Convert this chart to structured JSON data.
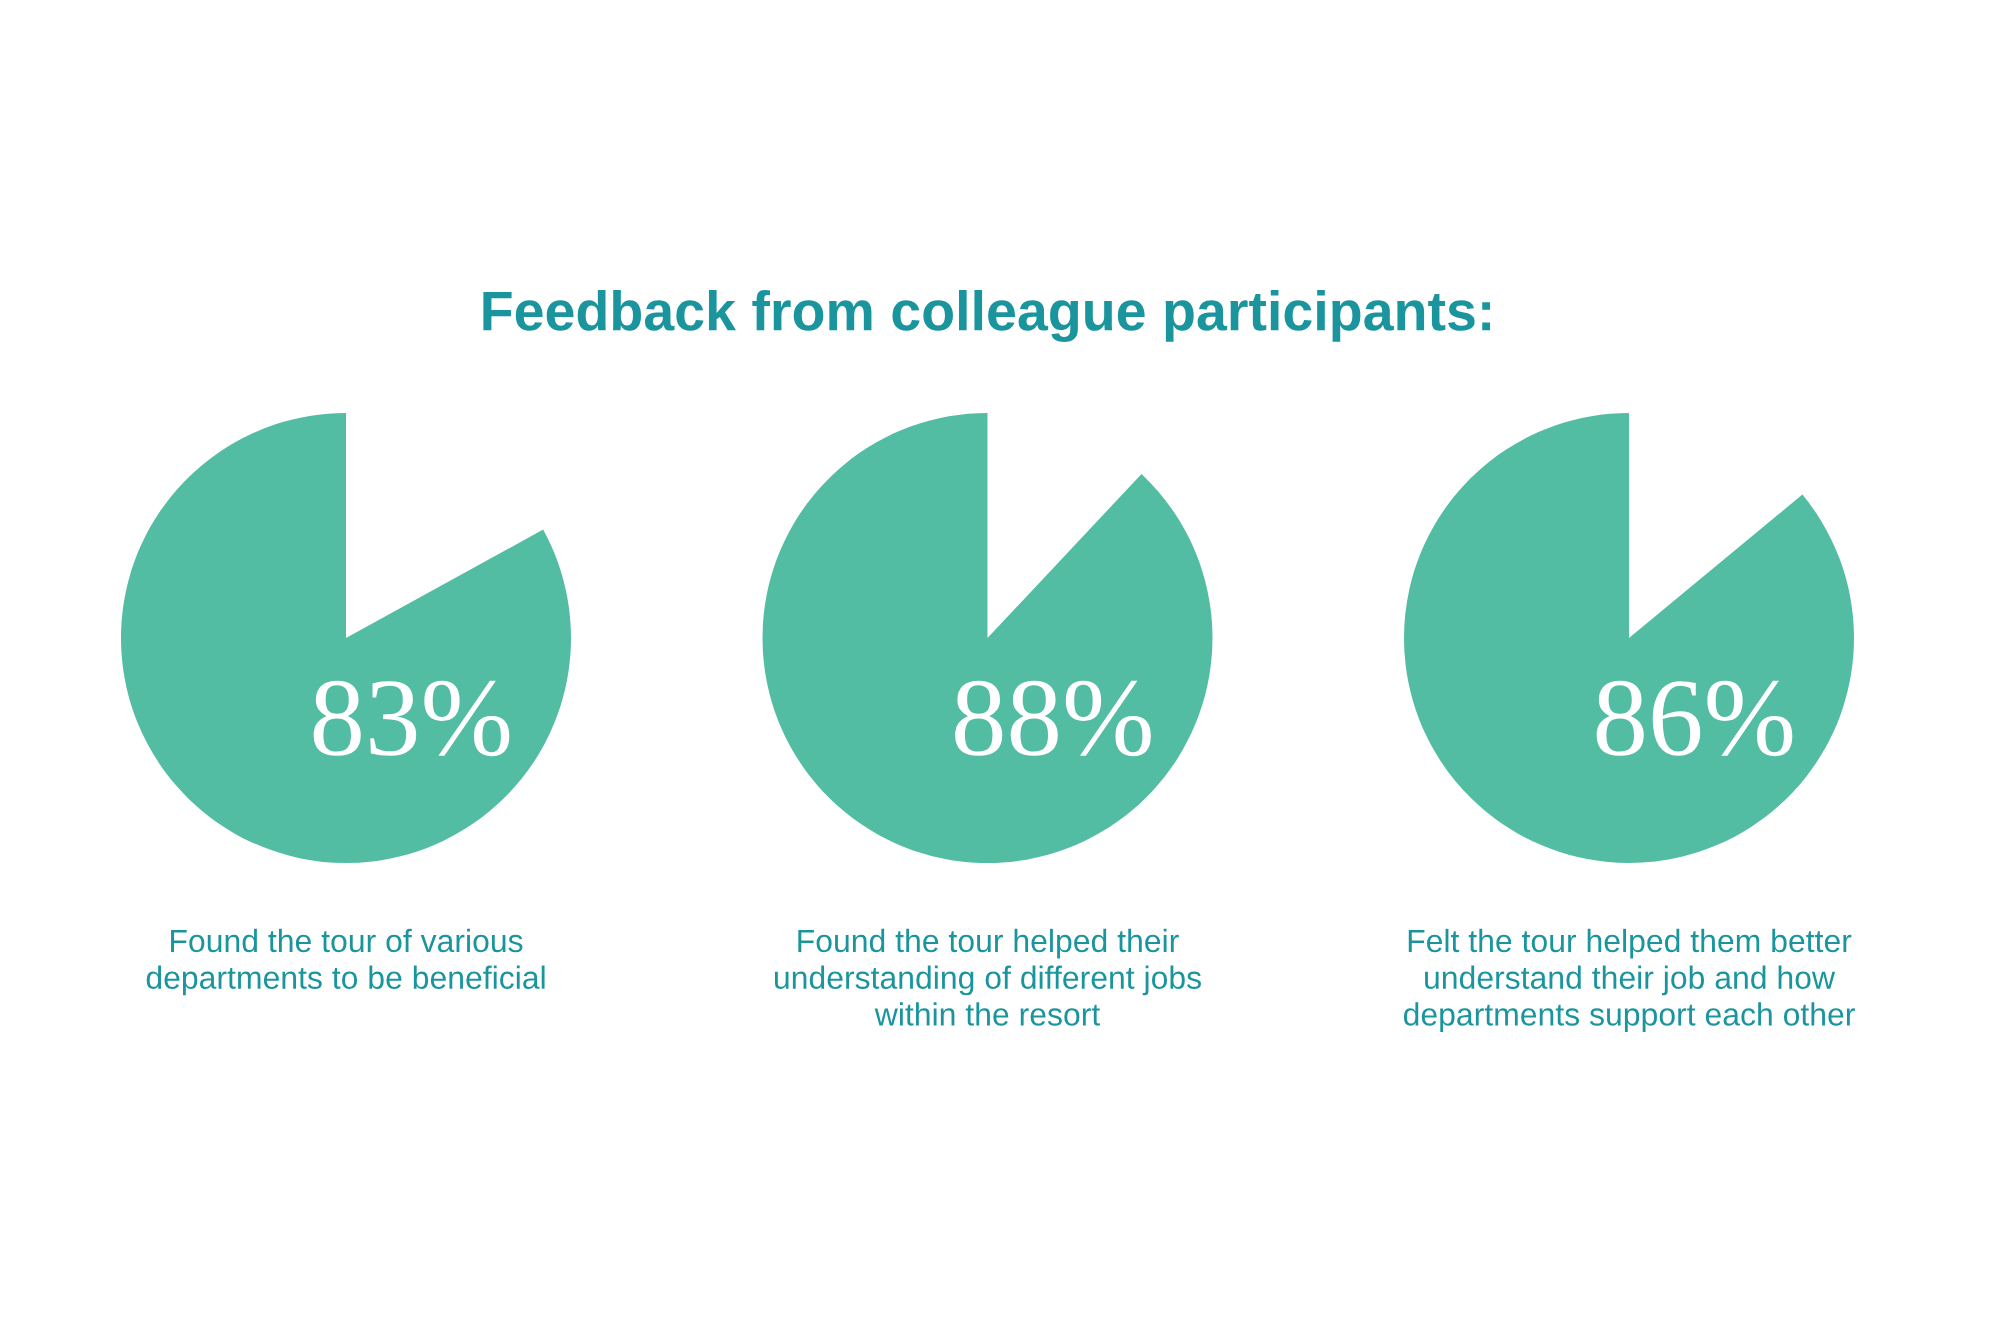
{
  "chart_data": [
    {
      "type": "pie",
      "categories": [
        "Found the tour of various\ndepartments to be beneficial"
      ],
      "values": [
        83
      ],
      "colors": [
        "#52bda3"
      ],
      "value_labels": [
        "83%"
      ]
    },
    {
      "type": "pie",
      "title": "Feedback from colleague participants:",
      "categories": [
        "Found the tour helped their\nunderstanding of different jobs\nwithin the resort"
      ],
      "values": [
        88
      ],
      "colors": [
        "#52bda3"
      ],
      "value_labels": [
        "88%"
      ]
    },
    {
      "type": "pie",
      "categories": [
        "Felt the tour helped them better\nunderstand their job and how\ndepartments support each other"
      ],
      "values": [
        86
      ],
      "colors": [
        "#52bda3"
      ],
      "value_labels": [
        "86%"
      ]
    }
  ]
}
